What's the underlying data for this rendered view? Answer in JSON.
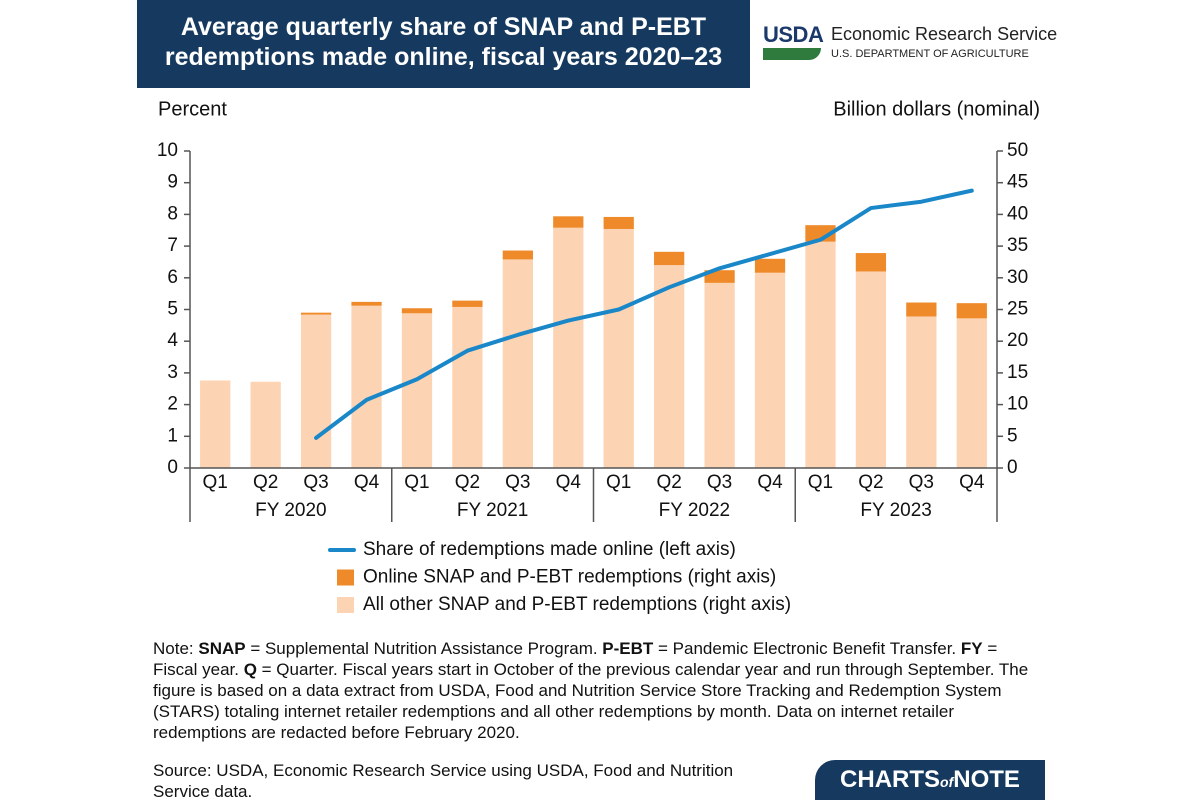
{
  "chart_data": {
    "type": "bar",
    "title": "Average quarterly share of SNAP and P-EBT redemptions made online, fiscal years 2020–23",
    "logo": {
      "mark": "USDA",
      "agency": "Economic Research Service",
      "department": "U.S. DEPARTMENT OF AGRICULTURE"
    },
    "y_label": "Percent",
    "y2_label": "Billion dollars (nominal)",
    "categories": [
      "Q1",
      "Q2",
      "Q3",
      "Q4",
      "Q1",
      "Q2",
      "Q3",
      "Q4",
      "Q1",
      "Q2",
      "Q3",
      "Q4",
      "Q1",
      "Q2",
      "Q3",
      "Q4"
    ],
    "groups": [
      "FY 2020",
      "FY 2021",
      "FY 2022",
      "FY 2023"
    ],
    "ylim": [
      0,
      10
    ],
    "yticks": [
      0,
      1,
      2,
      3,
      4,
      5,
      6,
      7,
      8,
      9,
      10
    ],
    "y2lim": [
      0,
      50
    ],
    "y2ticks": [
      0,
      5,
      10,
      15,
      20,
      25,
      30,
      35,
      40,
      45,
      50
    ],
    "series": [
      {
        "name": "Share of redemptions made online (left axis)",
        "type": "line",
        "color": "#1a87c9",
        "values": [
          null,
          null,
          0.95,
          2.15,
          2.8,
          3.7,
          4.2,
          4.65,
          5.0,
          5.7,
          6.3,
          6.75,
          7.2,
          8.2,
          8.4,
          8.75
        ]
      },
      {
        "name": "Online SNAP and P-EBT redemptions (right axis)",
        "type": "bar",
        "axis": "y2",
        "color": "#ef8a2a",
        "values": [
          null,
          null,
          0.3,
          0.6,
          0.8,
          1.0,
          1.4,
          1.8,
          1.9,
          2.1,
          2.0,
          2.2,
          2.6,
          2.9,
          2.2,
          2.4
        ]
      },
      {
        "name": "All other SNAP and P-EBT redemptions (right axis)",
        "type": "bar",
        "axis": "y2",
        "color": "#fcd3b3",
        "values": [
          13.8,
          13.6,
          24.2,
          25.6,
          24.4,
          25.4,
          32.9,
          37.9,
          37.7,
          32.0,
          29.2,
          30.8,
          35.7,
          31.0,
          23.9,
          23.6
        ]
      }
    ],
    "note": [
      {
        "text": "Note: "
      },
      {
        "text": "SNAP",
        "bold": true
      },
      {
        "text": " = Supplemental Nutrition Assistance Program. "
      },
      {
        "text": "P-EBT",
        "bold": true
      },
      {
        "text": " = Pandemic Electronic Benefit Transfer. "
      },
      {
        "text": "FY",
        "bold": true
      },
      {
        "text": " = Fiscal year. "
      },
      {
        "text": "Q",
        "bold": true
      },
      {
        "text": " = Quarter. Fiscal years start in October of the previous calendar year and run through September. The figure is based on a data extract from USDA, Food and Nutrition Service Store Tracking and Redemption System (STARS) totaling internet retailer redemptions and all other redemptions by month. Data on internet retailer redemptions are redacted before February 2020."
      }
    ],
    "source": "Source: USDA, Economic Research Service using USDA, Food and Nutrition Service data.",
    "brand": {
      "main": "CHARTS",
      "of": "of",
      "end": "NOTE"
    }
  }
}
